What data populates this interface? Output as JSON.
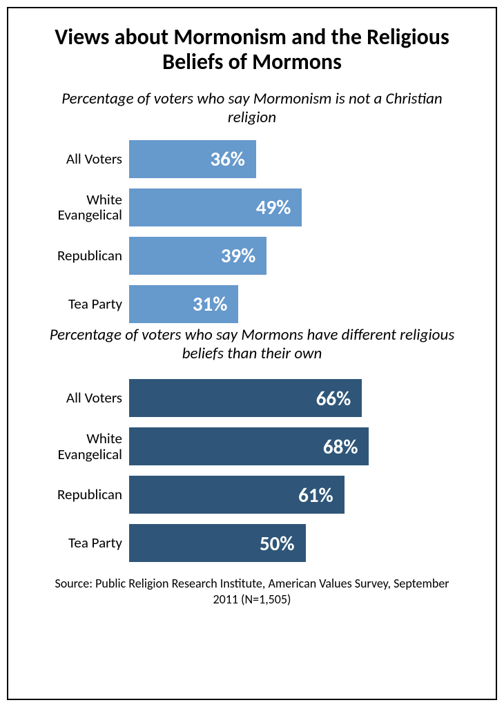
{
  "title": "Views about Mormonism and the Religious Beliefs of Mormons",
  "chart1": {
    "type": "bar",
    "subtitle": "Percentage of voters who say Mormonism is not a Christian religion",
    "bar_color": "#6699cc",
    "label_color": "#ffffff",
    "value_fontsize": 29,
    "max": 100,
    "rows": [
      {
        "label": "All Voters",
        "value": 36,
        "display": "36%"
      },
      {
        "label": "White Evangelical",
        "value": 49,
        "display": "49%"
      },
      {
        "label": "Republican",
        "value": 39,
        "display": "39%"
      },
      {
        "label": "Tea Party",
        "value": 31,
        "display": "31%"
      }
    ]
  },
  "chart2": {
    "type": "bar",
    "subtitle": "Percentage of voters who say Mormons have different religious beliefs than their own",
    "bar_color": "#2f5679",
    "label_color": "#ffffff",
    "value_fontsize": 29,
    "max": 100,
    "rows": [
      {
        "label": "All Voters",
        "value": 66,
        "display": "66%"
      },
      {
        "label": "White Evangelical",
        "value": 68,
        "display": "68%"
      },
      {
        "label": "Republican",
        "value": 61,
        "display": "61%"
      },
      {
        "label": "Tea Party",
        "value": 50,
        "display": "50%"
      }
    ]
  },
  "source": "Source: Public Religion Research Institute, American Values Survey, September 2011 (N=1,505)"
}
